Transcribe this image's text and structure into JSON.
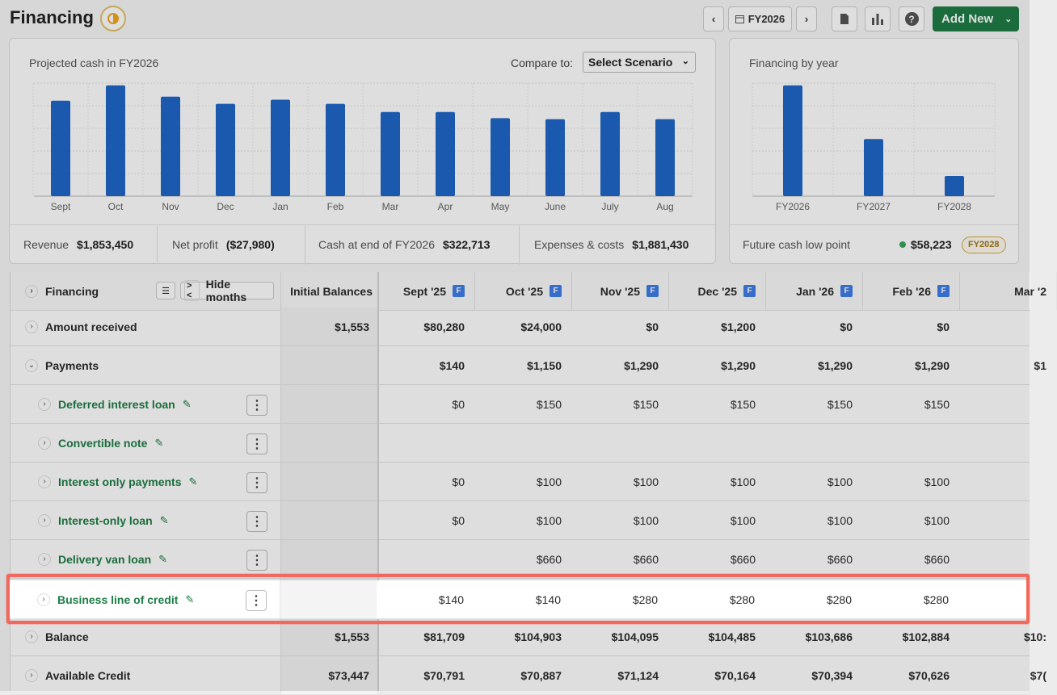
{
  "header": {
    "title": "Financing",
    "year_label": "FY2026",
    "add_new_label": "Add New"
  },
  "cash_card": {
    "title": "Projected cash in FY2026",
    "compare_label": "Compare to:",
    "compare_value": "Select Scenario"
  },
  "fin_card": {
    "title": "Financing by year",
    "low_point_label": "Future cash low point",
    "low_point_value": "$58,223",
    "low_point_badge": "FY2028"
  },
  "stats": {
    "revenue_label": "Revenue",
    "revenue_value": "$1,853,450",
    "profit_label": "Net profit",
    "profit_value": "($27,980)",
    "cash_label": "Cash at end of FY2026",
    "cash_value": "$322,713",
    "expenses_label": "Expenses & costs",
    "expenses_value": "$1,881,430"
  },
  "chart_data": [
    {
      "type": "bar",
      "title": "Projected cash in FY2026",
      "categories": [
        "Sept",
        "Oct",
        "Nov",
        "Dec",
        "Jan",
        "Feb",
        "Mar",
        "Apr",
        "May",
        "June",
        "July",
        "Aug"
      ],
      "values": [
        93,
        108,
        97,
        90,
        94,
        90,
        82,
        82,
        76,
        75,
        82,
        75
      ],
      "grid": true,
      "color": "#1f67c9"
    },
    {
      "type": "bar",
      "title": "Financing by year",
      "categories": [
        "FY2026",
        "FY2027",
        "FY2028"
      ],
      "values": [
        132,
        68,
        24
      ],
      "grid": true,
      "color": "#1f67c9"
    }
  ],
  "table": {
    "header": {
      "label": "Financing",
      "hide_months": "Hide months",
      "initial": "Initial Balances",
      "months": [
        "Sept '25",
        "Oct '25",
        "Nov '25",
        "Dec '25",
        "Jan '26",
        "Feb '26",
        "Mar '2"
      ],
      "forecast_badge": "F"
    },
    "rows": [
      {
        "label": "Amount received",
        "initial": "$1,553",
        "values": [
          "$80,280",
          "$24,000",
          "$0",
          "$1,200",
          "$0",
          "$0",
          ""
        ],
        "chev": "›"
      },
      {
        "label": "Payments",
        "initial": "",
        "values": [
          "$140",
          "$1,150",
          "$1,290",
          "$1,290",
          "$1,290",
          "$1,290",
          "$1"
        ],
        "chev": "⌄"
      },
      {
        "label": "Deferred interest loan",
        "initial": "",
        "values": [
          "$0",
          "$150",
          "$150",
          "$150",
          "$150",
          "$150",
          ""
        ],
        "chev": "›"
      },
      {
        "label": "Convertible note",
        "initial": "",
        "values": [
          "",
          "",
          "",
          "",
          "",
          "",
          ""
        ],
        "chev": "›"
      },
      {
        "label": "Interest only payments",
        "initial": "",
        "values": [
          "$0",
          "$100",
          "$100",
          "$100",
          "$100",
          "$100",
          ""
        ],
        "chev": "›"
      },
      {
        "label": "Interest-only loan",
        "initial": "",
        "values": [
          "$0",
          "$100",
          "$100",
          "$100",
          "$100",
          "$100",
          ""
        ],
        "chev": "›"
      },
      {
        "label": "Delivery van loan",
        "initial": "",
        "values": [
          "",
          "$660",
          "$660",
          "$660",
          "$660",
          "$660",
          ""
        ],
        "chev": "›"
      },
      {
        "label": "Business line of credit",
        "initial": "",
        "values": [
          "$140",
          "$140",
          "$280",
          "$280",
          "$280",
          "$280",
          ""
        ],
        "chev": "›"
      },
      {
        "label": "Balance",
        "initial": "$1,553",
        "values": [
          "$81,709",
          "$104,903",
          "$104,095",
          "$104,485",
          "$103,686",
          "$102,884",
          "$10:"
        ],
        "chev": "›"
      },
      {
        "label": "Available Credit",
        "initial": "$73,447",
        "values": [
          "$70,791",
          "$70,887",
          "$71,124",
          "$70,164",
          "$70,394",
          "$70,626",
          "$7("
        ],
        "chev": "›"
      }
    ]
  }
}
